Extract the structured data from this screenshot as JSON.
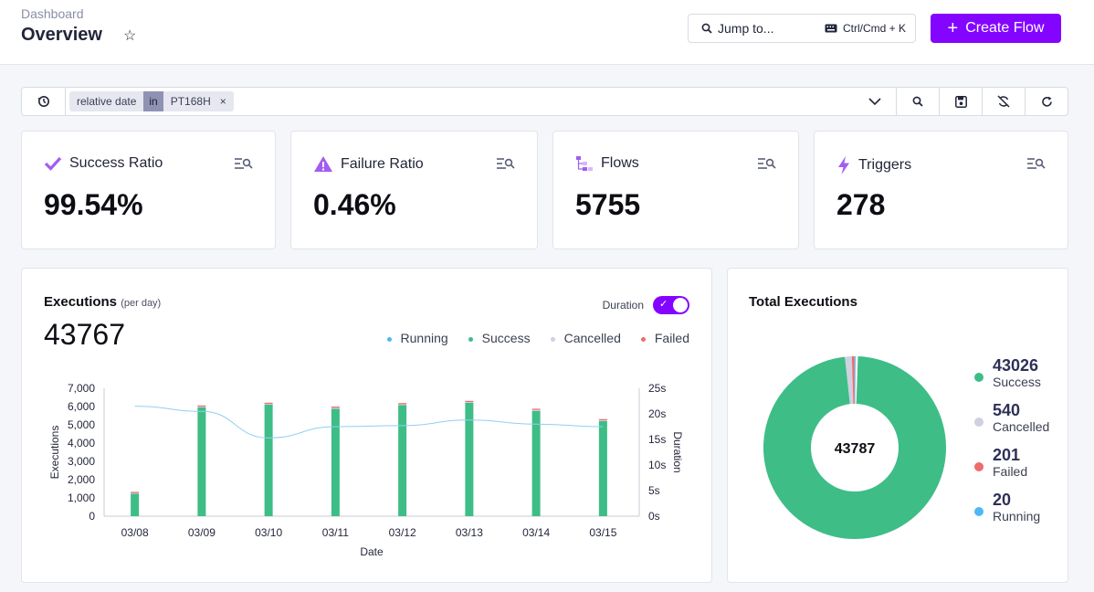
{
  "header": {
    "breadcrumb": "Dashboard",
    "title": "Overview",
    "jump_placeholder": "Jump to...",
    "shortcut": "Ctrl/Cmd + K",
    "create_label": "Create Flow",
    "accent": "#8405ff"
  },
  "filter": {
    "key": "relative date",
    "operator": "in",
    "value": "PT168H"
  },
  "kpis": [
    {
      "label": "Success Ratio",
      "value": "99.54%",
      "icon": "check-icon",
      "color": "#a35cf2"
    },
    {
      "label": "Failure Ratio",
      "value": "0.46%",
      "icon": "warning-icon",
      "color": "#a35cf2"
    },
    {
      "label": "Flows",
      "value": "5755",
      "icon": "flows-icon",
      "color": "#a35cf2"
    },
    {
      "label": "Triggers",
      "value": "278",
      "icon": "bolt-icon",
      "color": "#a35cf2"
    }
  ],
  "executions": {
    "title": "Executions",
    "subtitle": "(per day)",
    "total": "43767",
    "duration_label": "Duration",
    "duration_on": true,
    "legend": [
      {
        "name": "Running",
        "color": "#4db8f5"
      },
      {
        "name": "Success",
        "color": "#3ebd86"
      },
      {
        "name": "Cancelled",
        "color": "#cfd0e0"
      },
      {
        "name": "Failed",
        "color": "#f06b6b"
      }
    ]
  },
  "chart_data": {
    "type": "bar",
    "categories": [
      "03/08",
      "03/09",
      "03/10",
      "03/11",
      "03/12",
      "03/13",
      "03/14",
      "03/15"
    ],
    "series": [
      {
        "name": "Success",
        "values": [
          1230,
          5950,
          6100,
          5880,
          6080,
          6200,
          5750,
          5200
        ]
      },
      {
        "name": "Cancelled",
        "values": [
          80,
          80,
          80,
          90,
          80,
          80,
          100,
          80
        ]
      },
      {
        "name": "Failed",
        "values": [
          20,
          30,
          30,
          30,
          30,
          30,
          30,
          30
        ]
      },
      {
        "name": "Duration",
        "axis": "right",
        "values": [
          21.5,
          20.5,
          15.3,
          17.5,
          17.7,
          18.8,
          18.0,
          17.5
        ]
      }
    ],
    "xlabel": "Date",
    "ylabel": "Executions",
    "y2label": "Duration",
    "ylim": [
      0,
      7000
    ],
    "yticks": [
      "0",
      "1,000",
      "2,000",
      "3,000",
      "4,000",
      "5,000",
      "6,000",
      "7,000"
    ],
    "y2lim": [
      0,
      25
    ],
    "y2ticks": [
      "0s",
      "5s",
      "10s",
      "15s",
      "20s",
      "25s"
    ]
  },
  "total": {
    "title": "Total Executions",
    "center": "43787",
    "items": [
      {
        "value": 43026,
        "label": "Success",
        "color": "#3ebd86"
      },
      {
        "value": 540,
        "label": "Cancelled",
        "color": "#cfd0e0"
      },
      {
        "value": 201,
        "label": "Failed",
        "color": "#f06b6b"
      },
      {
        "value": 20,
        "label": "Running",
        "color": "#4db8f5"
      }
    ]
  }
}
